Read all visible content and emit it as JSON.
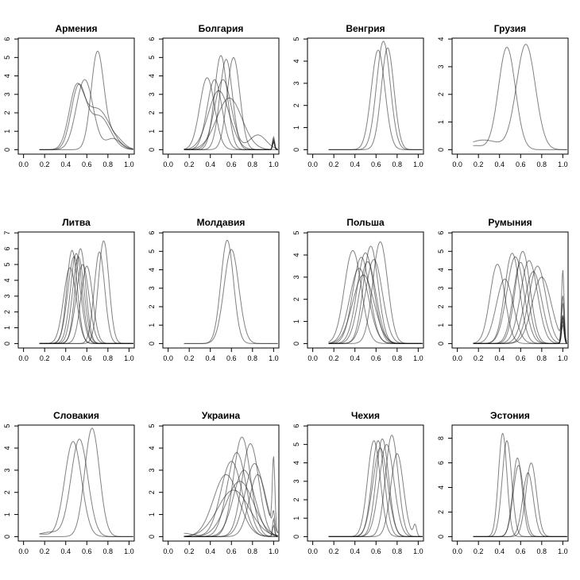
{
  "chart_data": {
    "type": "line",
    "description": "Small multiples of density curves",
    "x_ticks": [
      "0.0",
      "0.2",
      "0.4",
      "0.6",
      "0.8",
      "1.0"
    ],
    "xlim": [
      -0.05,
      1.05
    ],
    "panels": [
      {
        "title": "Армения",
        "ylim": [
          0,
          6
        ],
        "y_ticks": [
          "0",
          "1",
          "2",
          "3",
          "4",
          "5",
          "6"
        ],
        "series": [
          {
            "peaks": [
              [
                0.7,
                5.2,
                0.06
              ],
              [
                0.85,
                0.8,
                0.08
              ]
            ]
          },
          {
            "peaks": [
              [
                0.58,
                3.8,
                0.08
              ],
              [
                0.85,
                0.6,
                0.07
              ]
            ]
          },
          {
            "peaks": [
              [
                0.52,
                3.3,
                0.07
              ],
              [
                0.72,
                1.8,
                0.1
              ]
            ]
          },
          {
            "peaks": [
              [
                0.5,
                3.0,
                0.07
              ],
              [
                0.7,
                2.2,
                0.12
              ]
            ]
          }
        ]
      },
      {
        "title": "Болгария",
        "ylim": [
          0,
          6
        ],
        "y_ticks": [
          "0",
          "1",
          "2",
          "3",
          "4",
          "5",
          "6"
        ],
        "series": [
          {
            "peaks": [
              [
                0.5,
                5.1,
                0.06
              ],
              [
                1.0,
                0.7,
                0.01
              ]
            ]
          },
          {
            "peaks": [
              [
                0.55,
                4.9,
                0.06
              ],
              [
                1.0,
                0.5,
                0.01
              ]
            ]
          },
          {
            "peaks": [
              [
                0.62,
                5.0,
                0.06
              ]
            ]
          },
          {
            "peaks": [
              [
                0.37,
                3.9,
                0.07
              ],
              [
                1.0,
                0.6,
                0.01
              ]
            ]
          },
          {
            "peaks": [
              [
                0.44,
                3.8,
                0.07
              ],
              [
                1.0,
                0.4,
                0.01
              ]
            ]
          },
          {
            "peaks": [
              [
                0.52,
                3.8,
                0.08
              ],
              [
                0.85,
                0.8,
                0.08
              ]
            ]
          },
          {
            "peaks": [
              [
                0.48,
                3.2,
                0.1
              ],
              [
                1.0,
                0.5,
                0.01
              ]
            ]
          },
          {
            "peaks": [
              [
                0.58,
                2.8,
                0.12
              ],
              [
                1.0,
                0.4,
                0.01
              ]
            ]
          }
        ]
      },
      {
        "title": "Венгрия",
        "ylim": [
          0,
          5
        ],
        "y_ticks": [
          "0",
          "1",
          "2",
          "3",
          "4",
          "5"
        ],
        "series": [
          {
            "peaks": [
              [
                0.67,
                4.9,
                0.065
              ]
            ]
          },
          {
            "peaks": [
              [
                0.62,
                4.5,
                0.065
              ]
            ]
          },
          {
            "peaks": [
              [
                0.71,
                4.6,
                0.06
              ]
            ]
          }
        ]
      },
      {
        "title": "Грузия",
        "ylim": [
          0,
          4
        ],
        "y_ticks": [
          "0",
          "1",
          "2",
          "3",
          "4"
        ],
        "series": [
          {
            "peaks": [
              [
                0.47,
                3.7,
                0.08
              ],
              [
                0.15,
                0.15,
                0.1
              ]
            ]
          },
          {
            "peaks": [
              [
                0.65,
                3.8,
                0.09
              ],
              [
                0.25,
                0.35,
                0.15
              ]
            ]
          }
        ]
      },
      {
        "title": "Литва",
        "ylim": [
          0,
          7
        ],
        "y_ticks": [
          "0",
          "1",
          "2",
          "3",
          "4",
          "5",
          "6",
          "7"
        ],
        "series": [
          {
            "peaks": [
              [
                0.76,
                6.5,
                0.05
              ]
            ]
          },
          {
            "peaks": [
              [
                0.72,
                5.8,
                0.05
              ]
            ]
          },
          {
            "peaks": [
              [
                0.54,
                6.0,
                0.05
              ]
            ]
          },
          {
            "peaks": [
              [
                0.5,
                5.7,
                0.055
              ]
            ]
          },
          {
            "peaks": [
              [
                0.48,
                5.5,
                0.06
              ]
            ]
          },
          {
            "peaks": [
              [
                0.46,
                5.9,
                0.05
              ]
            ]
          },
          {
            "peaks": [
              [
                0.52,
                5.5,
                0.055
              ]
            ]
          },
          {
            "peaks": [
              [
                0.44,
                4.8,
                0.06
              ]
            ]
          },
          {
            "peaks": [
              [
                0.56,
                5.0,
                0.06
              ]
            ]
          },
          {
            "peaks": [
              [
                0.6,
                4.9,
                0.055
              ]
            ]
          }
        ]
      },
      {
        "title": "Молдавия",
        "ylim": [
          0,
          6
        ],
        "y_ticks": [
          "0",
          "1",
          "2",
          "3",
          "4",
          "5",
          "6"
        ],
        "series": [
          {
            "peaks": [
              [
                0.56,
                5.6,
                0.06
              ]
            ]
          },
          {
            "peaks": [
              [
                0.6,
                5.1,
                0.07
              ]
            ]
          }
        ]
      },
      {
        "title": "Польша",
        "ylim": [
          0,
          5
        ],
        "y_ticks": [
          "0",
          "1",
          "2",
          "3",
          "4",
          "5"
        ],
        "series": [
          {
            "peaks": [
              [
                0.64,
                4.6,
                0.07
              ]
            ]
          },
          {
            "peaks": [
              [
                0.38,
                4.2,
                0.08
              ]
            ]
          },
          {
            "peaks": [
              [
                0.55,
                4.4,
                0.07
              ]
            ]
          },
          {
            "peaks": [
              [
                0.5,
                4.1,
                0.08
              ]
            ]
          },
          {
            "peaks": [
              [
                0.46,
                3.9,
                0.08
              ]
            ]
          },
          {
            "peaks": [
              [
                0.52,
                3.7,
                0.08
              ]
            ]
          },
          {
            "peaks": [
              [
                0.44,
                3.4,
                0.09
              ]
            ]
          },
          {
            "peaks": [
              [
                0.48,
                3.1,
                0.1
              ]
            ]
          },
          {
            "peaks": [
              [
                0.58,
                3.8,
                0.08
              ]
            ]
          }
        ]
      },
      {
        "title": "Румыния",
        "ylim": [
          0,
          6
        ],
        "y_ticks": [
          "0",
          "1",
          "2",
          "3",
          "4",
          "5",
          "6"
        ],
        "series": [
          {
            "peaks": [
              [
                0.52,
                4.9,
                0.07
              ],
              [
                1.0,
                1.5,
                0.012
              ]
            ]
          },
          {
            "peaks": [
              [
                0.6,
                4.4,
                0.07
              ],
              [
                1.0,
                2.2,
                0.012
              ]
            ]
          },
          {
            "peaks": [
              [
                0.38,
                4.3,
                0.07
              ],
              [
                1.0,
                1.0,
                0.012
              ]
            ]
          },
          {
            "peaks": [
              [
                0.68,
                4.5,
                0.08
              ],
              [
                1.0,
                4.0,
                0.012
              ]
            ]
          },
          {
            "peaks": [
              [
                0.76,
                4.2,
                0.08
              ],
              [
                1.0,
                1.5,
                0.012
              ]
            ]
          },
          {
            "peaks": [
              [
                0.8,
                3.6,
                0.09
              ],
              [
                1.0,
                2.3,
                0.012
              ]
            ]
          },
          {
            "peaks": [
              [
                0.55,
                4.7,
                0.08
              ]
            ]
          },
          {
            "peaks": [
              [
                0.45,
                3.5,
                0.08
              ]
            ]
          },
          {
            "peaks": [
              [
                0.62,
                5.0,
                0.07
              ],
              [
                1.0,
                1.2,
                0.012
              ]
            ]
          },
          {
            "peaks": [
              [
                0.72,
                3.9,
                0.08
              ],
              [
                1.0,
                1.4,
                0.012
              ]
            ]
          }
        ]
      },
      {
        "title": "Словакия",
        "ylim": [
          0,
          5
        ],
        "y_ticks": [
          "0",
          "1",
          "2",
          "3",
          "4",
          "5"
        ],
        "series": [
          {
            "peaks": [
              [
                0.65,
                4.9,
                0.07
              ]
            ]
          },
          {
            "peaks": [
              [
                0.47,
                4.3,
                0.08
              ],
              [
                0.15,
                0.12,
                0.08
              ]
            ]
          },
          {
            "peaks": [
              [
                0.53,
                4.4,
                0.08
              ],
              [
                0.25,
                0.2,
                0.1
              ]
            ]
          }
        ]
      },
      {
        "title": "Украина",
        "ylim": [
          0,
          5
        ],
        "y_ticks": [
          "0",
          "1",
          "2",
          "3",
          "4",
          "5"
        ],
        "series": [
          {
            "peaks": [
              [
                0.7,
                4.5,
                0.08
              ],
              [
                1.0,
                0.8,
                0.01
              ]
            ]
          },
          {
            "peaks": [
              [
                0.78,
                4.2,
                0.08
              ]
            ]
          },
          {
            "peaks": [
              [
                0.6,
                3.4,
                0.1
              ],
              [
                0.15,
                0.15,
                0.08
              ]
            ]
          },
          {
            "peaks": [
              [
                0.65,
                3.8,
                0.09
              ],
              [
                1.0,
                0.5,
                0.01
              ]
            ]
          },
          {
            "peaks": [
              [
                0.82,
                3.3,
                0.09
              ],
              [
                1.0,
                3.2,
                0.012
              ]
            ]
          },
          {
            "peaks": [
              [
                0.55,
                2.8,
                0.12
              ]
            ]
          },
          {
            "peaks": [
              [
                0.72,
                3.0,
                0.1
              ]
            ]
          },
          {
            "peaks": [
              [
                0.68,
                2.5,
                0.13
              ]
            ]
          },
          {
            "peaks": [
              [
                0.85,
                2.8,
                0.08
              ],
              [
                1.0,
                0.7,
                0.01
              ]
            ]
          },
          {
            "peaks": [
              [
                0.62,
                2.1,
                0.15
              ]
            ]
          }
        ]
      },
      {
        "title": "Чехия",
        "ylim": [
          0,
          6
        ],
        "y_ticks": [
          "0",
          "1",
          "2",
          "3",
          "4",
          "5",
          "6"
        ],
        "series": [
          {
            "peaks": [
              [
                0.75,
                5.5,
                0.06
              ]
            ]
          },
          {
            "peaks": [
              [
                0.62,
                5.2,
                0.06
              ]
            ]
          },
          {
            "peaks": [
              [
                0.66,
                5.3,
                0.06
              ]
            ]
          },
          {
            "peaks": [
              [
                0.58,
                5.2,
                0.06
              ]
            ]
          },
          {
            "peaks": [
              [
                0.8,
                4.5,
                0.06
              ],
              [
                0.97,
                0.6,
                0.015
              ]
            ]
          },
          {
            "peaks": [
              [
                0.7,
                5.0,
                0.07
              ]
            ]
          },
          {
            "peaks": [
              [
                0.64,
                4.8,
                0.07
              ]
            ]
          }
        ]
      },
      {
        "title": "Эстония",
        "ylim": [
          0,
          9
        ],
        "y_ticks": [
          "0",
          "2",
          "4",
          "6",
          "8"
        ],
        "series": [
          {
            "peaks": [
              [
                0.43,
                8.4,
                0.04
              ]
            ]
          },
          {
            "peaks": [
              [
                0.47,
                7.8,
                0.045
              ]
            ]
          },
          {
            "peaks": [
              [
                0.57,
                6.4,
                0.045
              ]
            ]
          },
          {
            "peaks": [
              [
                0.7,
                6.0,
                0.05
              ]
            ]
          },
          {
            "peaks": [
              [
                0.67,
                5.2,
                0.05
              ]
            ]
          },
          {
            "peaks": [
              [
                0.58,
                5.8,
                0.05
              ]
            ]
          }
        ]
      }
    ]
  }
}
